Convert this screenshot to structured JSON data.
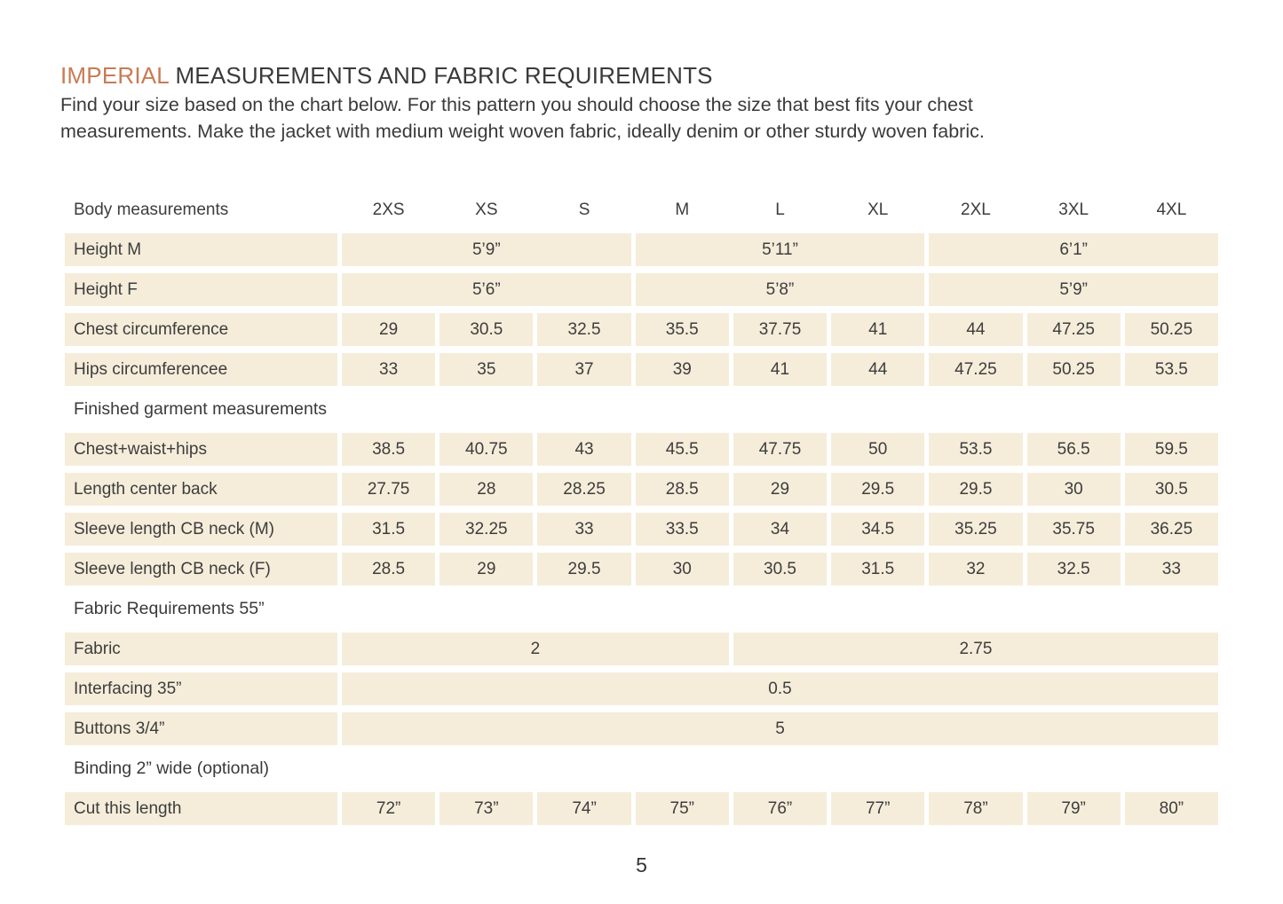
{
  "page": {
    "title_highlight": "IMPERIAL",
    "title_rest": " MEASUREMENTS AND FABRIC REQUIREMENTS",
    "intro_line1": "Find your size based on the chart below. For this pattern you should choose the size that best fits your chest",
    "intro_line2": "measurements. Make the jacket with medium weight woven fabric, ideally denim or other sturdy woven fabric.",
    "page_number": "5"
  },
  "colors": {
    "accent": "#c87b54",
    "text": "#3a3a3a",
    "cell_background": "#f5edda"
  },
  "table": {
    "header_label": "Body measurements",
    "sizes": [
      "2XS",
      "XS",
      "S",
      "M",
      "L",
      "XL",
      "2XL",
      "3XL",
      "4XL"
    ],
    "rows": [
      {
        "type": "data",
        "label": "Height M",
        "cells": [
          {
            "span": 3,
            "value": "5’9”"
          },
          {
            "span": 3,
            "value": "5’11”"
          },
          {
            "span": 3,
            "value": "6’1”"
          }
        ]
      },
      {
        "type": "data",
        "label": "Height F",
        "cells": [
          {
            "span": 3,
            "value": "5’6”"
          },
          {
            "span": 3,
            "value": "5’8”"
          },
          {
            "span": 3,
            "value": "5’9”"
          }
        ]
      },
      {
        "type": "data",
        "label": "Chest circumference",
        "cells": [
          {
            "span": 1,
            "value": "29"
          },
          {
            "span": 1,
            "value": "30.5"
          },
          {
            "span": 1,
            "value": "32.5"
          },
          {
            "span": 1,
            "value": "35.5"
          },
          {
            "span": 1,
            "value": "37.75"
          },
          {
            "span": 1,
            "value": "41"
          },
          {
            "span": 1,
            "value": "44"
          },
          {
            "span": 1,
            "value": "47.25"
          },
          {
            "span": 1,
            "value": "50.25"
          }
        ]
      },
      {
        "type": "data",
        "label": "Hips circumferencee",
        "cells": [
          {
            "span": 1,
            "value": "33"
          },
          {
            "span": 1,
            "value": "35"
          },
          {
            "span": 1,
            "value": "37"
          },
          {
            "span": 1,
            "value": "39"
          },
          {
            "span": 1,
            "value": "41"
          },
          {
            "span": 1,
            "value": "44"
          },
          {
            "span": 1,
            "value": "47.25"
          },
          {
            "span": 1,
            "value": "50.25"
          },
          {
            "span": 1,
            "value": "53.5"
          }
        ]
      },
      {
        "type": "section",
        "label": "Finished garment measurements"
      },
      {
        "type": "data",
        "label": "Chest+waist+hips",
        "cells": [
          {
            "span": 1,
            "value": "38.5"
          },
          {
            "span": 1,
            "value": "40.75"
          },
          {
            "span": 1,
            "value": "43"
          },
          {
            "span": 1,
            "value": "45.5"
          },
          {
            "span": 1,
            "value": "47.75"
          },
          {
            "span": 1,
            "value": "50"
          },
          {
            "span": 1,
            "value": "53.5"
          },
          {
            "span": 1,
            "value": "56.5"
          },
          {
            "span": 1,
            "value": "59.5"
          }
        ]
      },
      {
        "type": "data",
        "label": "Length center back",
        "cells": [
          {
            "span": 1,
            "value": "27.75"
          },
          {
            "span": 1,
            "value": "28"
          },
          {
            "span": 1,
            "value": "28.25"
          },
          {
            "span": 1,
            "value": "28.5"
          },
          {
            "span": 1,
            "value": "29"
          },
          {
            "span": 1,
            "value": "29.5"
          },
          {
            "span": 1,
            "value": "29.5"
          },
          {
            "span": 1,
            "value": "30"
          },
          {
            "span": 1,
            "value": "30.5"
          }
        ]
      },
      {
        "type": "data",
        "label": "Sleeve length CB neck (M)",
        "cells": [
          {
            "span": 1,
            "value": "31.5"
          },
          {
            "span": 1,
            "value": "32.25"
          },
          {
            "span": 1,
            "value": "33"
          },
          {
            "span": 1,
            "value": "33.5"
          },
          {
            "span": 1,
            "value": "34"
          },
          {
            "span": 1,
            "value": "34.5"
          },
          {
            "span": 1,
            "value": "35.25"
          },
          {
            "span": 1,
            "value": "35.75"
          },
          {
            "span": 1,
            "value": "36.25"
          }
        ]
      },
      {
        "type": "data",
        "label": "Sleeve length CB neck (F)",
        "cells": [
          {
            "span": 1,
            "value": "28.5"
          },
          {
            "span": 1,
            "value": "29"
          },
          {
            "span": 1,
            "value": "29.5"
          },
          {
            "span": 1,
            "value": "30"
          },
          {
            "span": 1,
            "value": "30.5"
          },
          {
            "span": 1,
            "value": "31.5"
          },
          {
            "span": 1,
            "value": "32"
          },
          {
            "span": 1,
            "value": "32.5"
          },
          {
            "span": 1,
            "value": "33"
          }
        ]
      },
      {
        "type": "section",
        "label": "Fabric Requirements 55”"
      },
      {
        "type": "data",
        "label": "Fabric",
        "cells": [
          {
            "span": 4,
            "value": "2"
          },
          {
            "span": 5,
            "value": "2.75"
          }
        ]
      },
      {
        "type": "data",
        "label": "Interfacing 35”",
        "cells": [
          {
            "span": 9,
            "value": "0.5"
          }
        ]
      },
      {
        "type": "data",
        "label": "Buttons 3/4”",
        "cells": [
          {
            "span": 9,
            "value": "5"
          }
        ]
      },
      {
        "type": "section",
        "label": "Binding 2” wide (optional)"
      },
      {
        "type": "data",
        "label": "Cut this length",
        "cells": [
          {
            "span": 1,
            "value": "72”"
          },
          {
            "span": 1,
            "value": "73”"
          },
          {
            "span": 1,
            "value": "74”"
          },
          {
            "span": 1,
            "value": "75”"
          },
          {
            "span": 1,
            "value": "76”"
          },
          {
            "span": 1,
            "value": "77”"
          },
          {
            "span": 1,
            "value": "78”"
          },
          {
            "span": 1,
            "value": "79”"
          },
          {
            "span": 1,
            "value": "80”"
          }
        ]
      }
    ]
  }
}
